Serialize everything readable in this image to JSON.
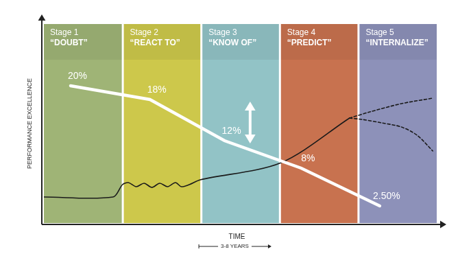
{
  "chart_data": {
    "type": "line",
    "y_label": "PERFORMANCE EXCELLENCE",
    "x_label": "TIME",
    "x_note": "3-8 YEARS",
    "xlim": [
      0,
      10
    ],
    "ylim": [
      0,
      29
    ],
    "grid": false,
    "tick_labels": false,
    "stages": [
      {
        "title": "Stage 1",
        "label": "“DOUBT”",
        "from": 0,
        "to": 2,
        "color": "#9fb476"
      },
      {
        "title": "Stage 2",
        "label": "“REACT TO”",
        "from": 2,
        "to": 4,
        "color": "#cdc84b"
      },
      {
        "title": "Stage 3",
        "label": "“KNOW OF”",
        "from": 4,
        "to": 6,
        "color": "#92c3c6"
      },
      {
        "title": "Stage 4",
        "label": "“PREDICT”",
        "from": 6,
        "to": 8,
        "color": "#c8724f"
      },
      {
        "title": "Stage 5",
        "label": "“INTERNALIZE”",
        "from": 8,
        "to": 10,
        "color": "#8d91b9"
      }
    ],
    "series": [
      {
        "color": "#ffffff",
        "line_style": "solid",
        "marker": "none",
        "data_labels": true,
        "x": [
          0.68,
          2.7,
          4.6,
          6.55,
          8.55
        ],
        "values": [
          20,
          18,
          12,
          8,
          2.5
        ],
        "value_labels": [
          "20%",
          "18%",
          "12%",
          "8%",
          "2.50%"
        ]
      },
      {
        "color": "#1a1a1a",
        "line_style": "solid",
        "marker": "none",
        "x": [
          0,
          1.76,
          2.0,
          2.15,
          2.35,
          2.55,
          2.75,
          2.95,
          3.15,
          3.35,
          3.5,
          3.7,
          3.98,
          6.04,
          7.78
        ],
        "values": [
          3.8,
          3.8,
          5.6,
          5.9,
          5.3,
          5.8,
          5.2,
          5.8,
          5.3,
          5.9,
          5.3,
          5.6,
          6.3,
          8.8,
          15.3
        ]
      },
      {
        "color": "#1a1a1a",
        "line_style": "dashed",
        "marker": "none",
        "x": [
          7.78,
          8.3,
          9.1,
          9.9
        ],
        "values": [
          15.3,
          16.2,
          17.4,
          18.2
        ]
      },
      {
        "color": "#1a1a1a",
        "line_style": "dashed",
        "marker": "none",
        "x": [
          7.78,
          8.1,
          8.6,
          9.1,
          9.5,
          9.9
        ],
        "values": [
          15.3,
          15.1,
          14.6,
          14.0,
          12.8,
          10.5
        ]
      }
    ]
  }
}
